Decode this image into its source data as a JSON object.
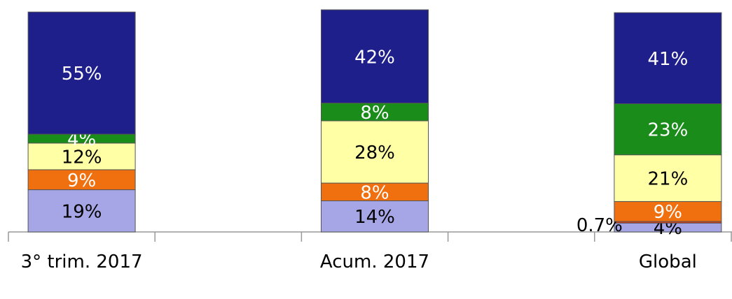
{
  "chart_data": {
    "type": "stacked_bar",
    "categories": [
      "3° trim. 2017",
      null,
      "Acum. 2017",
      null,
      "Global"
    ],
    "ylim": [
      0,
      100
    ],
    "series": [
      {
        "color": "#a6a6e6",
        "values": [
          19,
          null,
          14,
          null,
          4
        ],
        "value_labels": [
          "19%",
          null,
          "14%",
          null,
          "4%"
        ]
      },
      {
        "color": "#e03a1a",
        "values": [
          null,
          null,
          null,
          null,
          0.7
        ],
        "value_labels": [
          null,
          null,
          null,
          null,
          "0.7%"
        ]
      },
      {
        "color": "#f0700f",
        "values": [
          9,
          null,
          8,
          null,
          9
        ],
        "value_labels": [
          "9%",
          null,
          "8%",
          null,
          "9%"
        ]
      },
      {
        "color": "#ffffa6",
        "values": [
          12,
          null,
          28,
          null,
          21
        ],
        "value_labels": [
          "12%",
          null,
          "28%",
          null,
          "21%"
        ]
      },
      {
        "color": "#1a8c1a",
        "values": [
          4,
          null,
          8,
          null,
          23
        ],
        "value_labels": [
          "4%",
          null,
          "8%",
          null,
          "23%"
        ]
      },
      {
        "color": "#1f1f8c",
        "values": [
          55,
          null,
          42,
          null,
          41
        ],
        "value_labels": [
          "55%",
          null,
          "42%",
          null,
          "41%"
        ]
      }
    ]
  }
}
